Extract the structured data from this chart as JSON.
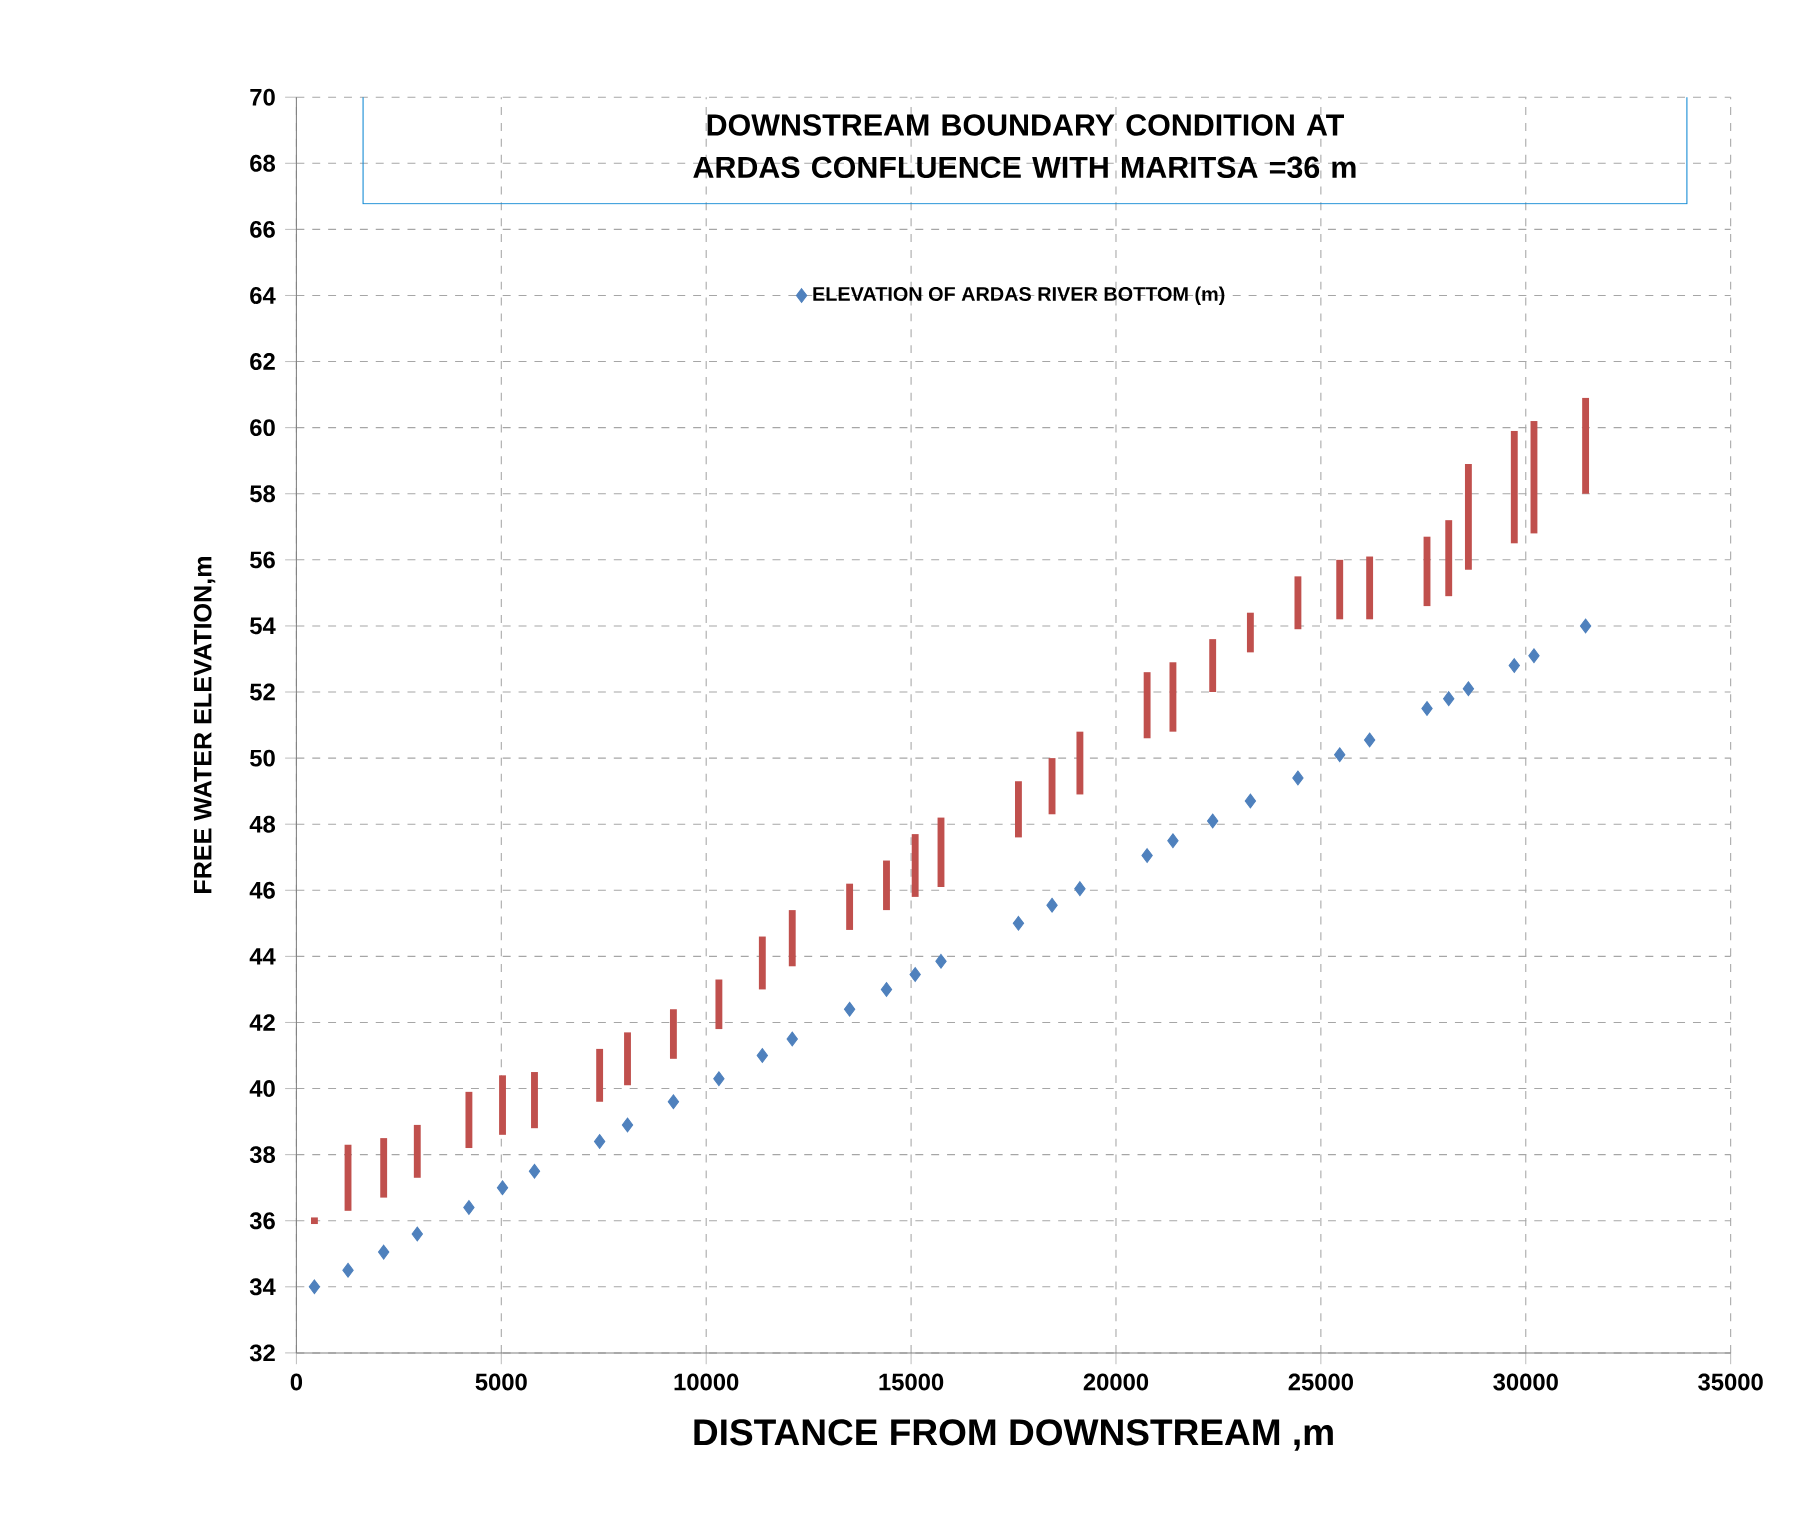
{
  "chart_data": {
    "type": "scatter",
    "title": "DOWNSTREAM  BOUNDARY  CONDITION  AT ARDAS  CONFLUENCE WITH MARITSA =36 m",
    "xlabel": "DISTANCE  FROM  DOWNSTREAM ,m",
    "ylabel": "FREE WATER ELEVATION,m",
    "xlim": [
      0,
      35000
    ],
    "xticks": [
      0,
      5000,
      10000,
      15000,
      20000,
      25000,
      30000,
      35000
    ],
    "ylim": [
      32,
      70
    ],
    "yticks": [
      32,
      34,
      36,
      38,
      40,
      42,
      44,
      46,
      48,
      50,
      52,
      54,
      56,
      58,
      60,
      62,
      64,
      66,
      68,
      70
    ],
    "grid": true,
    "legend": "top",
    "marker": "diamond",
    "x": [
      440,
      1260,
      2130,
      2950,
      4210,
      5030,
      5810,
      7400,
      8080,
      9200,
      10310,
      11370,
      12100,
      13500,
      14400,
      15100,
      15730,
      17620,
      18440,
      19120,
      20760,
      21390,
      22360,
      23280,
      24440,
      25460,
      26190,
      27590,
      28120,
      28600,
      29720,
      30200,
      31460
    ],
    "series": [
      {
        "name": "ELEVATION OF ARDAS RIVER BOTTOM (m)",
        "color": "#4f81bd",
        "values": [
          34.0,
          34.5,
          35.05,
          35.6,
          36.4,
          37.0,
          37.5,
          38.4,
          38.9,
          39.6,
          40.3,
          41.0,
          41.5,
          42.4,
          43.0,
          43.45,
          43.85,
          45.0,
          45.55,
          46.05,
          47.05,
          47.5,
          48.1,
          48.7,
          49.4,
          50.1,
          50.55,
          51.5,
          51.8,
          52.1,
          52.8,
          53.1,
          54.0
        ]
      },
      {
        "type": "bar",
        "color": "#c0504d",
        "base": [
          35.9,
          36.3,
          36.7,
          37.3,
          38.2,
          38.6,
          38.8,
          39.6,
          40.1,
          40.9,
          41.8,
          43.0,
          43.7,
          44.8,
          45.4,
          45.8,
          46.1,
          47.6,
          48.3,
          48.9,
          50.6,
          50.8,
          52.0,
          53.2,
          53.9,
          54.2,
          54.2,
          54.6,
          54.9,
          55.7,
          56.5,
          56.8,
          58.0
        ],
        "values": [
          0.2,
          2.0,
          1.8,
          1.6,
          1.7,
          1.8,
          1.7,
          1.6,
          1.6,
          1.5,
          1.5,
          1.6,
          1.7,
          1.4,
          1.5,
          1.9,
          2.1,
          1.7,
          1.7,
          1.9,
          2.0,
          2.1,
          1.6,
          1.2,
          1.6,
          1.8,
          1.9,
          2.1,
          2.3,
          3.2,
          3.4,
          3.4,
          2.9
        ]
      }
    ]
  }
}
